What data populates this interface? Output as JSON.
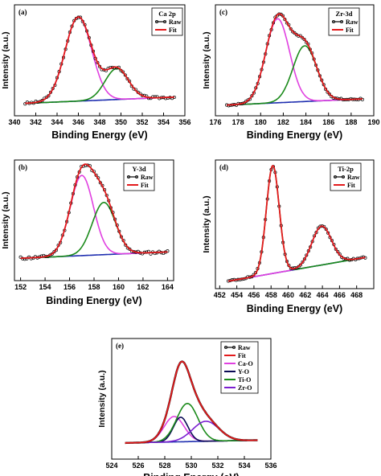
{
  "colors": {
    "raw": "#000000",
    "fit": "#e31a1c",
    "magenta": "#e040e0",
    "green": "#1a8a1a",
    "blue": "#1f2fb0",
    "navy": "#0a0a55",
    "violet": "#7a1fd0"
  },
  "chart_data": [
    {
      "panel": "(a)",
      "type": "line",
      "legend_title": "Ca 2p",
      "xlabel": "Binding Energy (eV)",
      "ylabel": "Intensity (a.u.)",
      "xlim": [
        340,
        356
      ],
      "xticks": [
        340,
        342,
        344,
        346,
        348,
        350,
        352,
        354,
        356
      ],
      "legend": [
        {
          "name": "Raw",
          "key": "raw"
        },
        {
          "name": "Fit",
          "key": "fit"
        }
      ],
      "baseline": [
        [
          341,
          0.05
        ],
        [
          355,
          0.12
        ]
      ],
      "peaks": [
        {
          "center": 346.0,
          "height": 0.95,
          "sigma": 1.25,
          "color": "magenta"
        },
        {
          "center": 349.6,
          "height": 0.35,
          "sigma": 1.1,
          "color": "green"
        }
      ],
      "noise": 0.012,
      "seed": 3
    },
    {
      "panel": "(c)",
      "type": "line",
      "legend_title": "Zr-3d",
      "xlabel": "Binding Energy (eV)",
      "ylabel": "Intensity (a.u.)",
      "xlim": [
        176,
        190
      ],
      "xticks": [
        176,
        178,
        180,
        182,
        184,
        186,
        188,
        190
      ],
      "legend": [
        {
          "name": "Raw",
          "key": "raw"
        },
        {
          "name": "Fit",
          "key": "fit"
        }
      ],
      "baseline": [
        [
          177,
          0.03
        ],
        [
          189,
          0.1
        ]
      ],
      "peaks": [
        {
          "center": 181.5,
          "height": 0.95,
          "sigma": 1.05,
          "color": "magenta"
        },
        {
          "center": 183.9,
          "height": 0.63,
          "sigma": 1.05,
          "color": "green"
        }
      ],
      "noise": 0.01,
      "seed": 7
    },
    {
      "panel": "(b)",
      "type": "line",
      "legend_title": "Y-3d",
      "xlabel": "Binding Energy (eV)",
      "ylabel": "Intensity (a.u.)",
      "xlim": [
        151.5,
        164.5
      ],
      "xticks": [
        152,
        154,
        156,
        158,
        160,
        162,
        164
      ],
      "legend": [
        {
          "name": "Raw",
          "key": "raw"
        },
        {
          "name": "Fit",
          "key": "fit"
        }
      ],
      "baseline": [
        [
          152,
          0.07
        ],
        [
          164,
          0.14
        ]
      ],
      "peaks": [
        {
          "center": 157.0,
          "height": 0.89,
          "sigma": 0.95,
          "color": "magenta"
        },
        {
          "center": 158.8,
          "height": 0.58,
          "sigma": 0.95,
          "color": "green"
        }
      ],
      "noise": 0.015,
      "seed": 11
    },
    {
      "panel": "(d)",
      "type": "line",
      "legend_title": "Ti-2p",
      "xlabel": "Binding Energy (eV)",
      "ylabel": "Intensity (a.u.)",
      "xlim": [
        451.5,
        470
      ],
      "xticks": [
        452,
        454,
        456,
        458,
        460,
        462,
        464,
        466,
        468
      ],
      "legend": [
        {
          "name": "Raw",
          "key": "raw"
        },
        {
          "name": "Fit",
          "key": "fit"
        }
      ],
      "baseline": [
        [
          453,
          0.01
        ],
        [
          469,
          0.23
        ]
      ],
      "peaks": [
        {
          "center": 458.2,
          "height": 1.0,
          "sigma": 0.75,
          "color": "green"
        },
        {
          "center": 463.9,
          "height": 0.36,
          "sigma": 1.15,
          "color": "magenta"
        }
      ],
      "noise": 0.008,
      "seed": 19
    },
    {
      "panel": "(e)",
      "type": "line",
      "legend_title": "",
      "xlabel": "Binding Energy (eV)",
      "ylabel": "Intensity (a.u.)",
      "xlim": [
        524,
        536
      ],
      "xticks": [
        524,
        526,
        528,
        530,
        532,
        534,
        536
      ],
      "legend": [
        {
          "name": "Raw",
          "key": "raw"
        },
        {
          "name": "Fit",
          "key": "fit"
        },
        {
          "name": "Ca-O",
          "key": "magenta"
        },
        {
          "name": "Y-O",
          "key": "navy"
        },
        {
          "name": "Ti-O",
          "key": "green"
        },
        {
          "name": "Zr-O",
          "key": "violet"
        }
      ],
      "baseline": [
        [
          525,
          0.01
        ],
        [
          535,
          0.04
        ]
      ],
      "peaks": [
        {
          "center": 528.7,
          "height": 0.28,
          "sigma": 0.75,
          "color": "magenta"
        },
        {
          "center": 529.2,
          "height": 0.27,
          "sigma": 0.55,
          "color": "navy"
        },
        {
          "center": 529.7,
          "height": 0.42,
          "sigma": 0.8,
          "color": "green"
        },
        {
          "center": 531.1,
          "height": 0.22,
          "sigma": 1.0,
          "color": "violet"
        }
      ],
      "noise": 0.0,
      "seed": 0
    }
  ]
}
